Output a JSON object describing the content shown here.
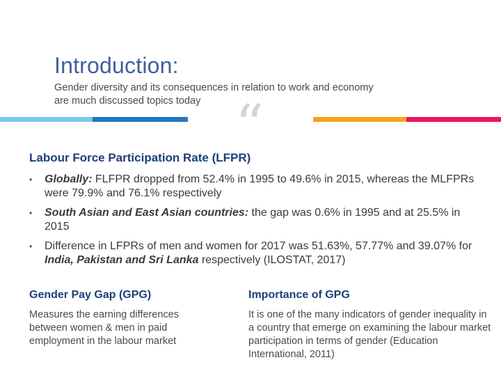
{
  "slide": {
    "title": "Introduction:",
    "subtitle": "Gender diversity and its consequences in relation to work and economy are much discussed topics today",
    "quote_glyph": "“"
  },
  "colors": {
    "title": "#3f5f9e",
    "heading": "#1b3f7a",
    "bar_lightblue": "#79c7ec",
    "bar_blue": "#2478bd",
    "bar_orange": "#f7a21d",
    "bar_pink": "#e8175d"
  },
  "lfpr": {
    "heading": "Labour Force Participation Rate (LFPR)",
    "bullet_glyph": "•",
    "items": [
      {
        "emphasis": "Globally:",
        "text": " FLFPR dropped from 52.4% in 1995 to 49.6% in 2015, whereas the MLFPRs were 79.9% and 76.1% respectively"
      },
      {
        "emphasis": "South Asian and East Asian countries:",
        "text": " the gap was 0.6% in 1995 and at 25.5% in 2015"
      },
      {
        "text_before": "Difference in LFPRs of men and women for 2017 was 51.63%, 57.77% and 39.07% for ",
        "emphasis": "India, Pakistan and Sri Lanka",
        "text_after": " respectively (ILOSTAT, 2017)"
      }
    ]
  },
  "gpg": {
    "heading": "Gender Pay Gap (GPG)",
    "text": "Measures the earning differences between women & men in paid employment in the labour market"
  },
  "importance": {
    "heading": "Importance of GPG",
    "text": "It is one of the many indicators of gender inequality in a country that emerge on examining the labour market participation in terms of gender (Education International, 2011)"
  }
}
